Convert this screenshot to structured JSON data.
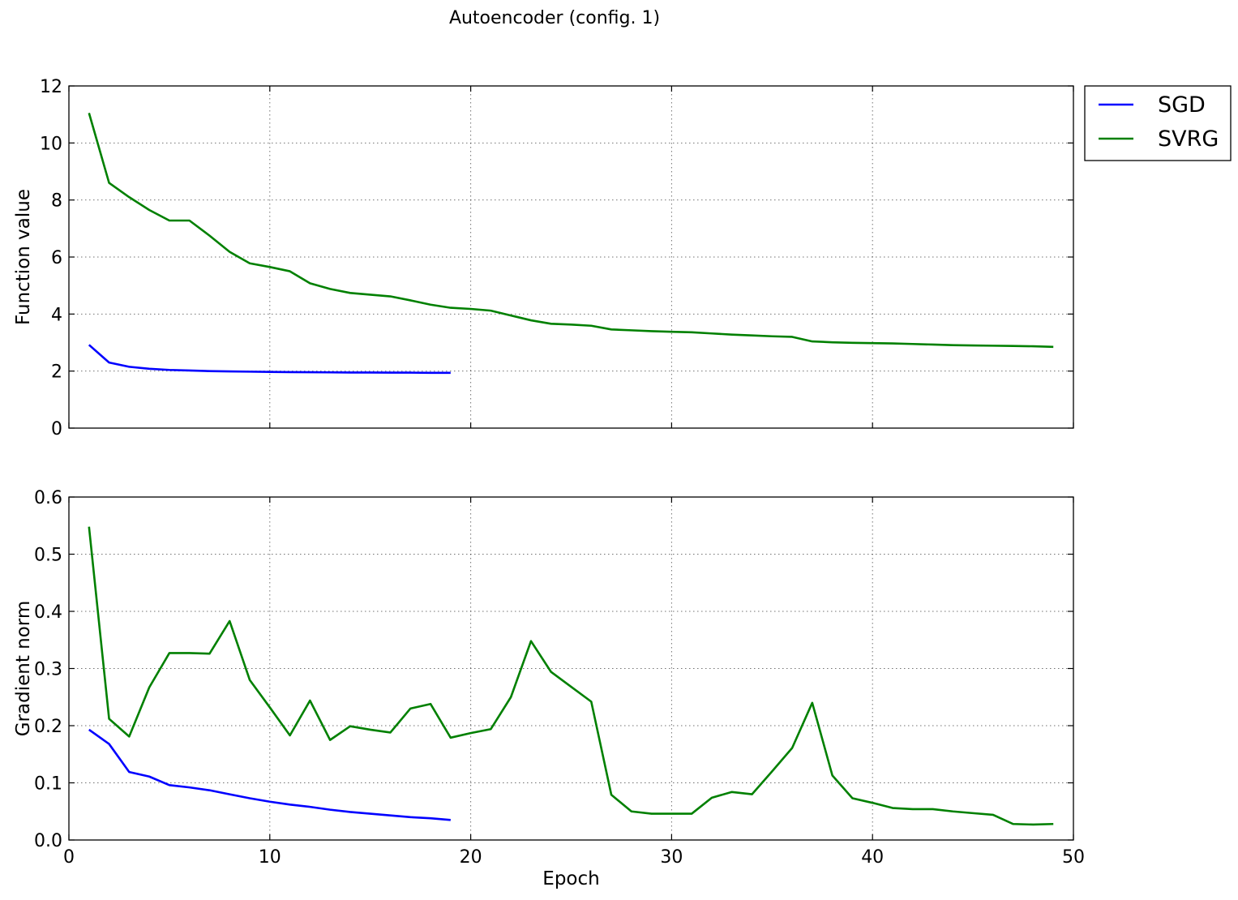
{
  "chart_data": [
    {
      "type": "line",
      "title": "Autoencoder (config. 1)",
      "xlabel": "",
      "ylabel": "Function value",
      "xlim": [
        0,
        50
      ],
      "ylim": [
        0,
        12
      ],
      "xticks": [
        0,
        10,
        20,
        30,
        40,
        50
      ],
      "yticks": [
        0,
        2,
        4,
        6,
        8,
        10,
        12
      ],
      "xtick_labels_visible": false,
      "grid": true,
      "legend": "outside-right-top",
      "series": [
        {
          "name": "SGD",
          "color": "#0000ff",
          "x": [
            1,
            2,
            3,
            4,
            5,
            6,
            7,
            8,
            9,
            10,
            11,
            12,
            13,
            14,
            15,
            16,
            17,
            18,
            19
          ],
          "values": [
            2.92,
            2.3,
            2.15,
            2.08,
            2.04,
            2.02,
            2.0,
            1.99,
            1.98,
            1.97,
            1.965,
            1.96,
            1.955,
            1.95,
            1.95,
            1.945,
            1.945,
            1.94,
            1.94
          ]
        },
        {
          "name": "SVRG",
          "color": "#008000",
          "x": [
            1,
            2,
            3,
            4,
            5,
            6,
            7,
            8,
            9,
            10,
            11,
            12,
            13,
            14,
            15,
            16,
            17,
            18,
            19,
            20,
            21,
            22,
            23,
            24,
            25,
            26,
            27,
            28,
            29,
            30,
            31,
            32,
            33,
            34,
            35,
            36,
            37,
            38,
            39,
            40,
            41,
            42,
            43,
            44,
            45,
            46,
            47,
            48,
            49
          ],
          "values": [
            11.05,
            8.6,
            8.1,
            7.65,
            7.28,
            7.28,
            6.75,
            6.18,
            5.78,
            5.65,
            5.5,
            5.08,
            4.88,
            4.74,
            4.68,
            4.62,
            4.48,
            4.33,
            4.22,
            4.18,
            4.12,
            3.95,
            3.78,
            3.66,
            3.63,
            3.59,
            3.46,
            3.43,
            3.4,
            3.38,
            3.36,
            3.32,
            3.28,
            3.25,
            3.22,
            3.2,
            3.04,
            3.01,
            2.99,
            2.98,
            2.97,
            2.95,
            2.93,
            2.91,
            2.9,
            2.89,
            2.88,
            2.87,
            2.85
          ]
        }
      ]
    },
    {
      "type": "line",
      "xlabel": "Epoch",
      "ylabel": "Gradient norm",
      "xlim": [
        0,
        50
      ],
      "ylim": [
        0,
        0.6
      ],
      "xticks": [
        0,
        10,
        20,
        30,
        40,
        50
      ],
      "yticks": [
        0.0,
        0.1,
        0.2,
        0.3,
        0.4,
        0.5,
        0.6
      ],
      "ytick_labels": [
        "0.0",
        "0.1",
        "0.2",
        "0.3",
        "0.4",
        "0.5",
        "0.6"
      ],
      "grid": true,
      "series": [
        {
          "name": "SGD",
          "color": "#0000ff",
          "x": [
            1,
            2,
            3,
            4,
            5,
            6,
            7,
            8,
            9,
            10,
            11,
            12,
            13,
            14,
            15,
            16,
            17,
            18,
            19
          ],
          "values": [
            0.193,
            0.168,
            0.119,
            0.111,
            0.096,
            0.092,
            0.087,
            0.08,
            0.073,
            0.067,
            0.062,
            0.058,
            0.053,
            0.049,
            0.046,
            0.043,
            0.04,
            0.038,
            0.035
          ]
        },
        {
          "name": "SVRG",
          "color": "#008000",
          "x": [
            1,
            2,
            3,
            4,
            5,
            6,
            7,
            8,
            9,
            10,
            11,
            12,
            13,
            14,
            15,
            16,
            17,
            18,
            19,
            20,
            21,
            22,
            23,
            24,
            25,
            26,
            27,
            28,
            29,
            30,
            31,
            32,
            33,
            34,
            35,
            36,
            37,
            38,
            39,
            40,
            41,
            42,
            43,
            44,
            45,
            46,
            47,
            48,
            49
          ],
          "values": [
            0.548,
            0.212,
            0.181,
            0.267,
            0.327,
            0.327,
            0.326,
            0.383,
            0.28,
            0.232,
            0.183,
            0.244,
            0.175,
            0.199,
            0.193,
            0.188,
            0.23,
            0.238,
            0.179,
            0.187,
            0.194,
            0.25,
            0.348,
            0.294,
            0.268,
            0.242,
            0.079,
            0.05,
            0.046,
            0.046,
            0.046,
            0.074,
            0.084,
            0.08,
            0.12,
            0.161,
            0.24,
            0.113,
            0.073,
            0.065,
            0.056,
            0.054,
            0.054,
            0.05,
            0.047,
            0.044,
            0.028,
            0.027,
            0.028
          ]
        }
      ]
    }
  ]
}
